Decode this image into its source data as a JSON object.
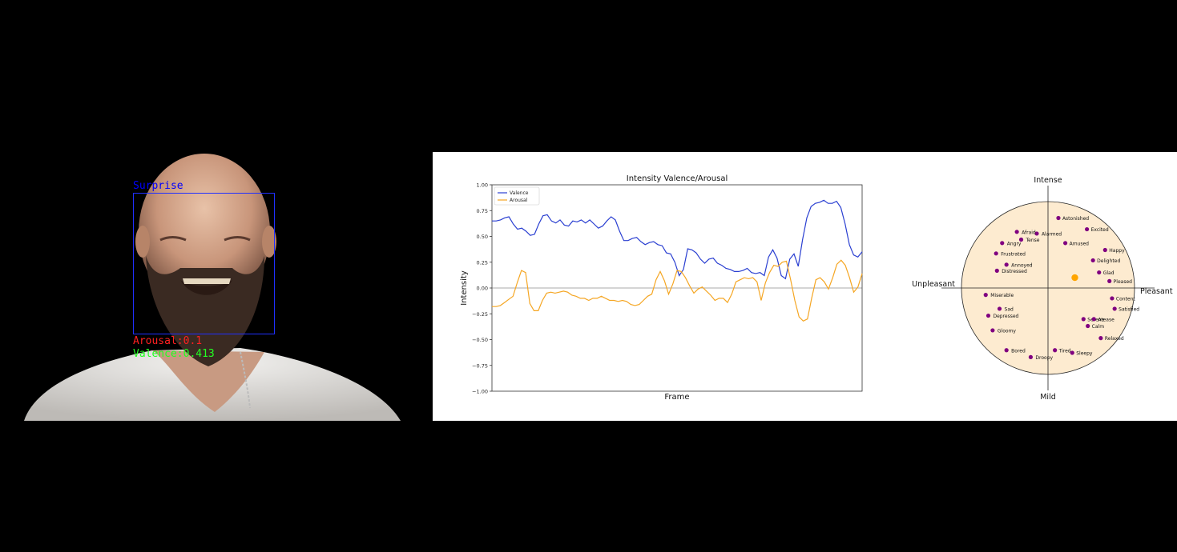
{
  "video": {
    "emotion_label": "Surprise",
    "arousal_label": "Arousal:0.1",
    "valence_label": "Valence:0.413"
  },
  "colors": {
    "valence": "#2a3fd1",
    "arousal": "#f5a623",
    "circle_fill": "#fdebd0",
    "emotion_dot": "#800080",
    "current_dot": "#ffa500"
  },
  "chart_data": [
    {
      "type": "line",
      "title": "Intensity Valence/Arousal",
      "xlabel": "Frame",
      "ylabel": "Intensity",
      "ylim": [
        -1.0,
        1.0
      ],
      "yticks": [
        "1.00",
        "0.75",
        "0.50",
        "0.25",
        "0.00",
        "−0.25",
        "−0.50",
        "−0.75",
        "−1.00"
      ],
      "ytick_values": [
        1.0,
        0.75,
        0.5,
        0.25,
        0.0,
        -0.25,
        -0.5,
        -0.75,
        -1.0
      ],
      "legend_position": "upper-left",
      "grid": false,
      "series": [
        {
          "name": "Valence",
          "values": [
            0.65,
            0.65,
            0.66,
            0.68,
            0.69,
            0.62,
            0.57,
            0.58,
            0.55,
            0.51,
            0.52,
            0.62,
            0.7,
            0.71,
            0.65,
            0.63,
            0.66,
            0.61,
            0.6,
            0.65,
            0.64,
            0.66,
            0.63,
            0.66,
            0.62,
            0.58,
            0.6,
            0.65,
            0.69,
            0.66,
            0.55,
            0.46,
            0.46,
            0.48,
            0.49,
            0.45,
            0.42,
            0.44,
            0.45,
            0.42,
            0.41,
            0.34,
            0.33,
            0.25,
            0.12,
            0.18,
            0.38,
            0.37,
            0.34,
            0.28,
            0.24,
            0.28,
            0.29,
            0.24,
            0.22,
            0.19,
            0.18,
            0.16,
            0.16,
            0.17,
            0.19,
            0.15,
            0.14,
            0.15,
            0.12,
            0.3,
            0.37,
            0.29,
            0.12,
            0.09,
            0.28,
            0.33,
            0.21,
            0.47,
            0.68,
            0.79,
            0.82,
            0.83,
            0.85,
            0.82,
            0.82,
            0.84,
            0.78,
            0.62,
            0.42,
            0.32,
            0.3,
            0.35
          ]
        },
        {
          "name": "Arousal",
          "values": [
            -0.18,
            -0.18,
            -0.17,
            -0.14,
            -0.11,
            -0.08,
            0.05,
            0.17,
            0.15,
            -0.15,
            -0.22,
            -0.22,
            -0.12,
            -0.05,
            -0.04,
            -0.05,
            -0.04,
            -0.03,
            -0.04,
            -0.07,
            -0.08,
            -0.1,
            -0.1,
            -0.12,
            -0.1,
            -0.1,
            -0.08,
            -0.1,
            -0.12,
            -0.12,
            -0.13,
            -0.12,
            -0.13,
            -0.16,
            -0.17,
            -0.16,
            -0.12,
            -0.08,
            -0.06,
            0.08,
            0.16,
            0.07,
            -0.06,
            0.04,
            0.17,
            0.16,
            0.1,
            0.02,
            -0.05,
            -0.01,
            0.01,
            -0.03,
            -0.07,
            -0.12,
            -0.1,
            -0.1,
            -0.14,
            -0.06,
            0.06,
            0.08,
            0.1,
            0.09,
            0.1,
            0.06,
            -0.12,
            0.05,
            0.15,
            0.22,
            0.21,
            0.25,
            0.26,
            0.08,
            -0.12,
            -0.28,
            -0.32,
            -0.3,
            -0.1,
            0.08,
            0.1,
            0.06,
            -0.01,
            0.1,
            0.23,
            0.27,
            0.22,
            0.1,
            -0.04,
            0.01,
            0.14
          ]
        }
      ]
    },
    {
      "type": "scatter",
      "title": "",
      "axis_labels": {
        "top": "Intense",
        "bottom": "Mild",
        "left": "Unpleasant",
        "right": "Pleasant"
      },
      "xlim": [
        -1,
        1
      ],
      "ylim": [
        -1,
        1
      ],
      "current": {
        "x": 0.31,
        "y": 0.12
      },
      "points": [
        {
          "label": "Astonished",
          "x": 0.12,
          "y": 0.81
        },
        {
          "label": "Excited",
          "x": 0.45,
          "y": 0.68
        },
        {
          "label": "Alarmed",
          "x": -0.13,
          "y": 0.63
        },
        {
          "label": "Afraid",
          "x": -0.36,
          "y": 0.65
        },
        {
          "label": "Angry",
          "x": -0.53,
          "y": 0.52
        },
        {
          "label": "Tense",
          "x": -0.31,
          "y": 0.56
        },
        {
          "label": "Amused",
          "x": 0.2,
          "y": 0.52
        },
        {
          "label": "Happy",
          "x": 0.66,
          "y": 0.44
        },
        {
          "label": "Delighted",
          "x": 0.52,
          "y": 0.32
        },
        {
          "label": "Frustrated",
          "x": -0.6,
          "y": 0.4
        },
        {
          "label": "Annoyed",
          "x": -0.48,
          "y": 0.27
        },
        {
          "label": "Glad",
          "x": 0.59,
          "y": 0.18
        },
        {
          "label": "Pleased",
          "x": 0.71,
          "y": 0.08
        },
        {
          "label": "Distressed",
          "x": -0.59,
          "y": 0.2
        },
        {
          "label": "Content",
          "x": 0.74,
          "y": -0.12
        },
        {
          "label": "Miserable",
          "x": -0.72,
          "y": -0.08
        },
        {
          "label": "Sad",
          "x": -0.56,
          "y": -0.24
        },
        {
          "label": "Satisfied",
          "x": 0.77,
          "y": -0.24
        },
        {
          "label": "Depressed",
          "x": -0.69,
          "y": -0.32
        },
        {
          "label": "Serene",
          "x": 0.41,
          "y": -0.36
        },
        {
          "label": "Atease",
          "x": 0.53,
          "y": -0.36
        },
        {
          "label": "Calm",
          "x": 0.46,
          "y": -0.44
        },
        {
          "label": "Gloomy",
          "x": -0.64,
          "y": -0.49
        },
        {
          "label": "Relaxed",
          "x": 0.61,
          "y": -0.58
        },
        {
          "label": "Bored",
          "x": -0.48,
          "y": -0.72
        },
        {
          "label": "Tired",
          "x": 0.08,
          "y": -0.72
        },
        {
          "label": "Sleepy",
          "x": 0.28,
          "y": -0.75
        },
        {
          "label": "Droopy",
          "x": -0.2,
          "y": -0.8
        }
      ]
    }
  ]
}
